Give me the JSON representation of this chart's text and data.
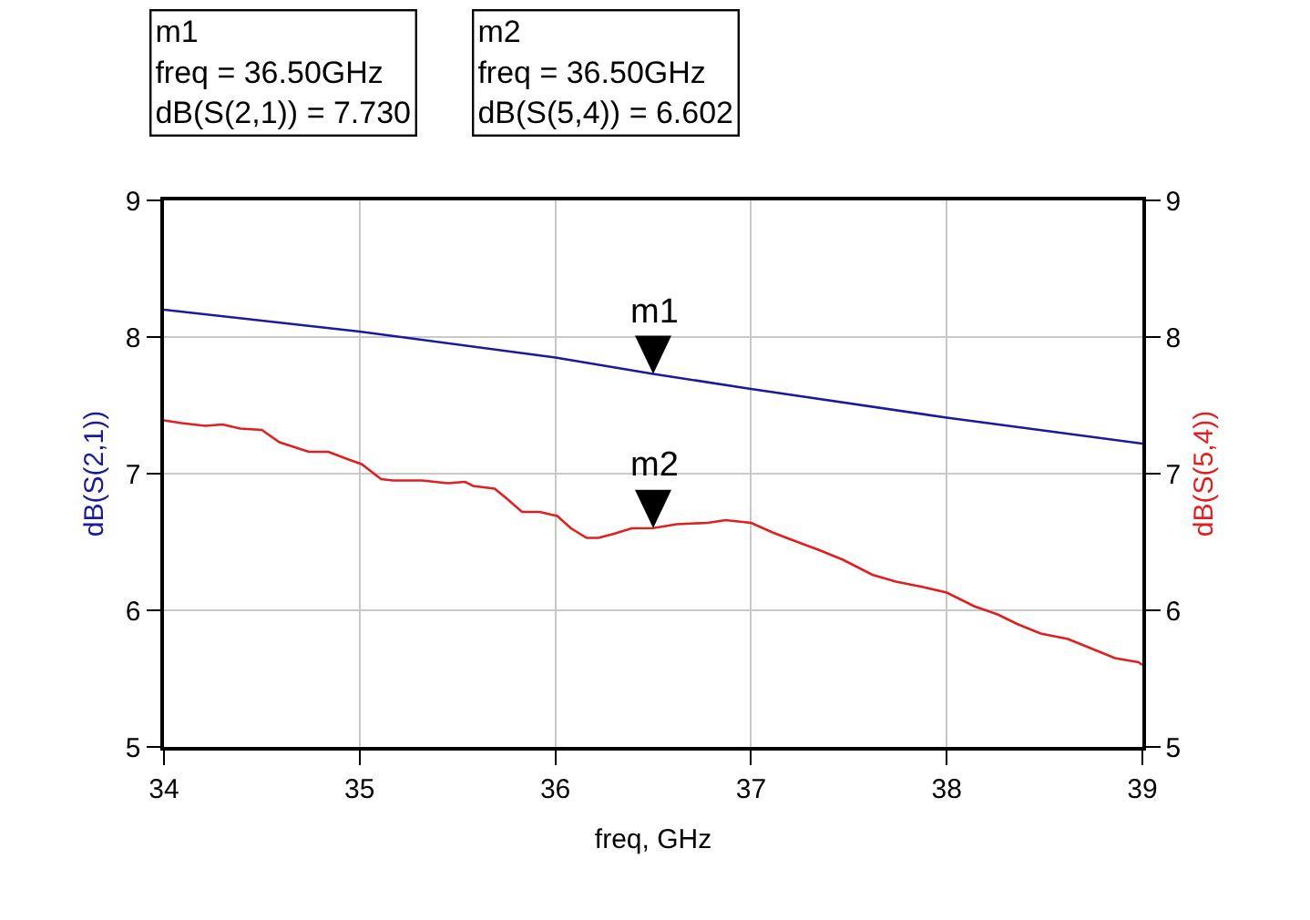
{
  "chart_data": {
    "type": "line",
    "xlabel": "freq, GHz",
    "ylabel": "dB(S(2,1))",
    "y2label": "dB(S(5,4))",
    "xlim": [
      34,
      39
    ],
    "xticks": [
      34,
      35,
      36,
      37,
      38,
      39
    ],
    "ylim": [
      5,
      9
    ],
    "yticks": [
      5,
      6,
      7,
      8,
      9
    ],
    "y2lim": [
      5,
      9
    ],
    "y2ticks": [
      5,
      6,
      7,
      8,
      9
    ],
    "grid": true,
    "marker": "none",
    "line_style": "solid",
    "series": [
      {
        "color": "#1a1a9a",
        "x": [
          34,
          35,
          36,
          36.5,
          37,
          38,
          39
        ],
        "values": [
          8.2,
          8.04,
          7.85,
          7.73,
          7.62,
          7.41,
          7.22
        ]
      },
      {
        "color": "#e02020",
        "axis": "y2",
        "x": [
          34,
          34.09,
          34.21,
          34.3,
          34.39,
          34.5,
          34.59,
          34.74,
          34.84,
          34.95,
          35.01,
          35.11,
          35.17,
          35.32,
          35.45,
          35.54,
          35.58,
          35.69,
          35.75,
          35.83,
          35.92,
          36.01,
          36.08,
          36.16,
          36.22,
          36.3,
          36.39,
          36.5,
          36.62,
          36.78,
          36.87,
          37,
          37.11,
          37.2,
          37.35,
          37.47,
          37.62,
          37.74,
          37.88,
          38,
          38.14,
          38.26,
          38.36,
          38.48,
          38.62,
          38.74,
          38.86,
          38.98,
          39
        ],
        "values": [
          7.39,
          7.37,
          7.35,
          7.36,
          7.33,
          7.32,
          7.23,
          7.16,
          7.16,
          7.1,
          7.07,
          6.96,
          6.95,
          6.95,
          6.93,
          6.94,
          6.91,
          6.89,
          6.82,
          6.72,
          6.72,
          6.69,
          6.6,
          6.53,
          6.53,
          6.56,
          6.6,
          6.602,
          6.63,
          6.64,
          6.66,
          6.64,
          6.57,
          6.52,
          6.44,
          6.37,
          6.26,
          6.21,
          6.17,
          6.13,
          6.03,
          5.97,
          5.9,
          5.83,
          5.79,
          5.72,
          5.65,
          5.62,
          5.6
        ]
      }
    ],
    "annotations": [
      "m1\nfreq = 36.50GHz\ndB(S(2,1)) = 7.730",
      "m2\nfreq = 36.50GHz\ndB(S(5,4)) = 6.602",
      {
        "text": "m1",
        "x": 36.5,
        "y": 7.73
      },
      {
        "text": "m2",
        "x": 36.5,
        "y": 6.602
      }
    ]
  }
}
